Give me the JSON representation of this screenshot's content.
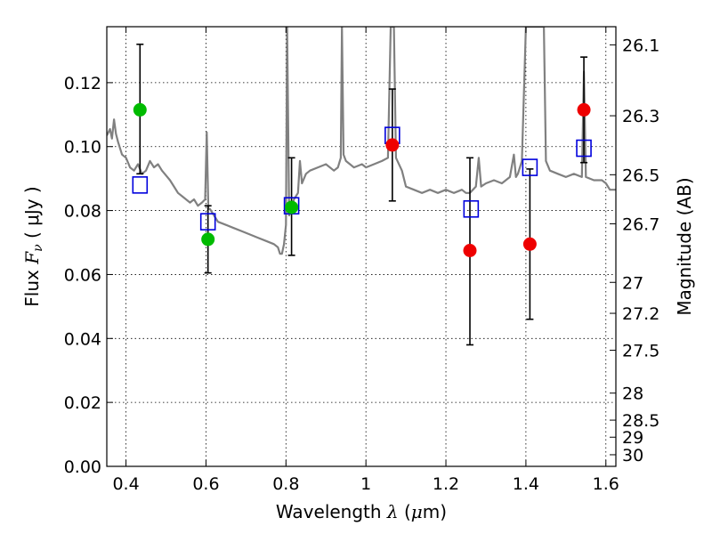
{
  "chart_data": {
    "type": "scatter",
    "title": "",
    "xlabel": {
      "prefix": "Wavelength ",
      "symbol": "λ",
      "unit_open": " (",
      "unit_mu": "μ",
      "unit_rest": "m)"
    },
    "ylabel": {
      "prefix": "Flux ",
      "symbol": "F",
      "sub": "ν",
      "unit": " ( μJy )"
    },
    "y2label": "Magnitude (AB)",
    "xlim": [
      0.352,
      1.625
    ],
    "ylim": [
      0.0,
      0.1375
    ],
    "grid": true,
    "x_ticks": [
      {
        "v": 0.4,
        "label": "0.4"
      },
      {
        "v": 0.6,
        "label": "0.6"
      },
      {
        "v": 0.8,
        "label": "0.8"
      },
      {
        "v": 1.0,
        "label": "1"
      },
      {
        "v": 1.2,
        "label": "1.2"
      },
      {
        "v": 1.4,
        "label": "1.4"
      },
      {
        "v": 1.6,
        "label": "1.6"
      }
    ],
    "y_ticks": [
      {
        "v": 0.0,
        "label": "0.00"
      },
      {
        "v": 0.02,
        "label": "0.02"
      },
      {
        "v": 0.04,
        "label": "0.04"
      },
      {
        "v": 0.06,
        "label": "0.06"
      },
      {
        "v": 0.08,
        "label": "0.08"
      },
      {
        "v": 0.1,
        "label": "0.10"
      },
      {
        "v": 0.12,
        "label": "0.12"
      }
    ],
    "mag_ticks": [
      {
        "mag": 26.1,
        "label": "26.1"
      },
      {
        "mag": 26.3,
        "label": "26.3"
      },
      {
        "mag": 26.5,
        "label": "26.5"
      },
      {
        "mag": 26.7,
        "label": "26.7"
      },
      {
        "mag": 27.0,
        "label": "27"
      },
      {
        "mag": 27.2,
        "label": "27.2"
      },
      {
        "mag": 27.5,
        "label": "27.5"
      },
      {
        "mag": 28.0,
        "label": "28"
      },
      {
        "mag": 28.5,
        "label": "28.5"
      },
      {
        "mag": 29.0,
        "label": "29"
      },
      {
        "mag": 30.0,
        "label": "30"
      }
    ],
    "colors": {
      "detected": "#00bb00",
      "model": "#0000dd",
      "upper": "#ee0000",
      "spectrum": "#808080",
      "errorbar": "#000000"
    },
    "observed": [
      {
        "x": 0.435,
        "y": 0.1115,
        "err_lo": 0.0915,
        "err_hi": 0.132,
        "color": "green"
      },
      {
        "x": 0.605,
        "y": 0.071,
        "err_lo": 0.0605,
        "err_hi": 0.0815,
        "color": "green"
      },
      {
        "x": 0.814,
        "y": 0.081,
        "err_lo": 0.066,
        "err_hi": 0.0965,
        "color": "green"
      },
      {
        "x": 1.066,
        "y": 0.1005,
        "err_lo": 0.083,
        "err_hi": 0.118,
        "color": "red"
      },
      {
        "x": 1.26,
        "y": 0.0675,
        "err_lo": 0.038,
        "err_hi": 0.0965,
        "color": "red"
      },
      {
        "x": 1.41,
        "y": 0.0695,
        "err_lo": 0.046,
        "err_hi": 0.093,
        "color": "red"
      },
      {
        "x": 1.545,
        "y": 0.1115,
        "err_lo": 0.095,
        "err_hi": 0.128,
        "color": "red"
      }
    ],
    "model_photometry": [
      {
        "x": 0.435,
        "y": 0.088
      },
      {
        "x": 0.605,
        "y": 0.0765
      },
      {
        "x": 0.814,
        "y": 0.0815
      },
      {
        "x": 1.066,
        "y": 0.1035
      },
      {
        "x": 1.263,
        "y": 0.0805
      },
      {
        "x": 1.41,
        "y": 0.0935
      },
      {
        "x": 1.545,
        "y": 0.0995
      }
    ],
    "spectrum": [
      [
        0.352,
        0.1035
      ],
      [
        0.36,
        0.1055
      ],
      [
        0.365,
        0.1025
      ],
      [
        0.37,
        0.1085
      ],
      [
        0.375,
        0.104
      ],
      [
        0.38,
        0.1015
      ],
      [
        0.39,
        0.0975
      ],
      [
        0.4,
        0.0965
      ],
      [
        0.41,
        0.0935
      ],
      [
        0.42,
        0.0925
      ],
      [
        0.43,
        0.0945
      ],
      [
        0.44,
        0.0915
      ],
      [
        0.45,
        0.0925
      ],
      [
        0.46,
        0.0955
      ],
      [
        0.47,
        0.0935
      ],
      [
        0.48,
        0.0945
      ],
      [
        0.49,
        0.0925
      ],
      [
        0.5,
        0.091
      ],
      [
        0.51,
        0.0895
      ],
      [
        0.52,
        0.0875
      ],
      [
        0.53,
        0.0855
      ],
      [
        0.54,
        0.0845
      ],
      [
        0.55,
        0.0835
      ],
      [
        0.56,
        0.0825
      ],
      [
        0.57,
        0.0835
      ],
      [
        0.58,
        0.0815
      ],
      [
        0.59,
        0.0825
      ],
      [
        0.598,
        0.0835
      ],
      [
        0.602,
        0.1045
      ],
      [
        0.606,
        0.0805
      ],
      [
        0.61,
        0.0805
      ],
      [
        0.62,
        0.0785
      ],
      [
        0.63,
        0.0765
      ],
      [
        0.65,
        0.0755
      ],
      [
        0.67,
        0.0745
      ],
      [
        0.69,
        0.0735
      ],
      [
        0.71,
        0.0725
      ],
      [
        0.73,
        0.0715
      ],
      [
        0.75,
        0.0705
      ],
      [
        0.77,
        0.0695
      ],
      [
        0.78,
        0.0685
      ],
      [
        0.785,
        0.0665
      ],
      [
        0.79,
        0.0665
      ],
      [
        0.795,
        0.0695
      ],
      [
        0.8,
        0.0755
      ],
      [
        0.803,
        0.1375
      ],
      [
        0.808,
        0.0785
      ],
      [
        0.82,
        0.0835
      ],
      [
        0.83,
        0.0855
      ],
      [
        0.835,
        0.0955
      ],
      [
        0.84,
        0.0885
      ],
      [
        0.85,
        0.0915
      ],
      [
        0.86,
        0.0925
      ],
      [
        0.88,
        0.0935
      ],
      [
        0.9,
        0.0945
      ],
      [
        0.92,
        0.0925
      ],
      [
        0.93,
        0.0935
      ],
      [
        0.937,
        0.0965
      ],
      [
        0.94,
        0.1375
      ],
      [
        0.944,
        0.0975
      ],
      [
        0.95,
        0.0955
      ],
      [
        0.97,
        0.0935
      ],
      [
        0.99,
        0.0945
      ],
      [
        1.0,
        0.0935
      ],
      [
        1.02,
        0.0945
      ],
      [
        1.04,
        0.0955
      ],
      [
        1.055,
        0.0965
      ],
      [
        1.062,
        0.1375
      ],
      [
        1.07,
        0.1375
      ],
      [
        1.075,
        0.0965
      ],
      [
        1.09,
        0.0925
      ],
      [
        1.1,
        0.0875
      ],
      [
        1.12,
        0.0865
      ],
      [
        1.14,
        0.0855
      ],
      [
        1.16,
        0.0865
      ],
      [
        1.18,
        0.0855
      ],
      [
        1.2,
        0.0865
      ],
      [
        1.22,
        0.0855
      ],
      [
        1.24,
        0.0865
      ],
      [
        1.25,
        0.0855
      ],
      [
        1.26,
        0.0855
      ],
      [
        1.275,
        0.0875
      ],
      [
        1.282,
        0.0965
      ],
      [
        1.288,
        0.0875
      ],
      [
        1.3,
        0.0885
      ],
      [
        1.32,
        0.0895
      ],
      [
        1.34,
        0.0885
      ],
      [
        1.36,
        0.0905
      ],
      [
        1.37,
        0.0975
      ],
      [
        1.375,
        0.0905
      ],
      [
        1.38,
        0.0915
      ],
      [
        1.39,
        0.0955
      ],
      [
        1.4,
        0.1375
      ],
      [
        1.445,
        0.1375
      ],
      [
        1.45,
        0.0955
      ],
      [
        1.46,
        0.0925
      ],
      [
        1.48,
        0.0915
      ],
      [
        1.5,
        0.0905
      ],
      [
        1.52,
        0.0915
      ],
      [
        1.54,
        0.0905
      ],
      [
        1.545,
        0.1235
      ],
      [
        1.55,
        0.0905
      ],
      [
        1.57,
        0.0895
      ],
      [
        1.59,
        0.0895
      ],
      [
        1.6,
        0.0885
      ],
      [
        1.61,
        0.0865
      ],
      [
        1.625,
        0.0865
      ]
    ]
  }
}
